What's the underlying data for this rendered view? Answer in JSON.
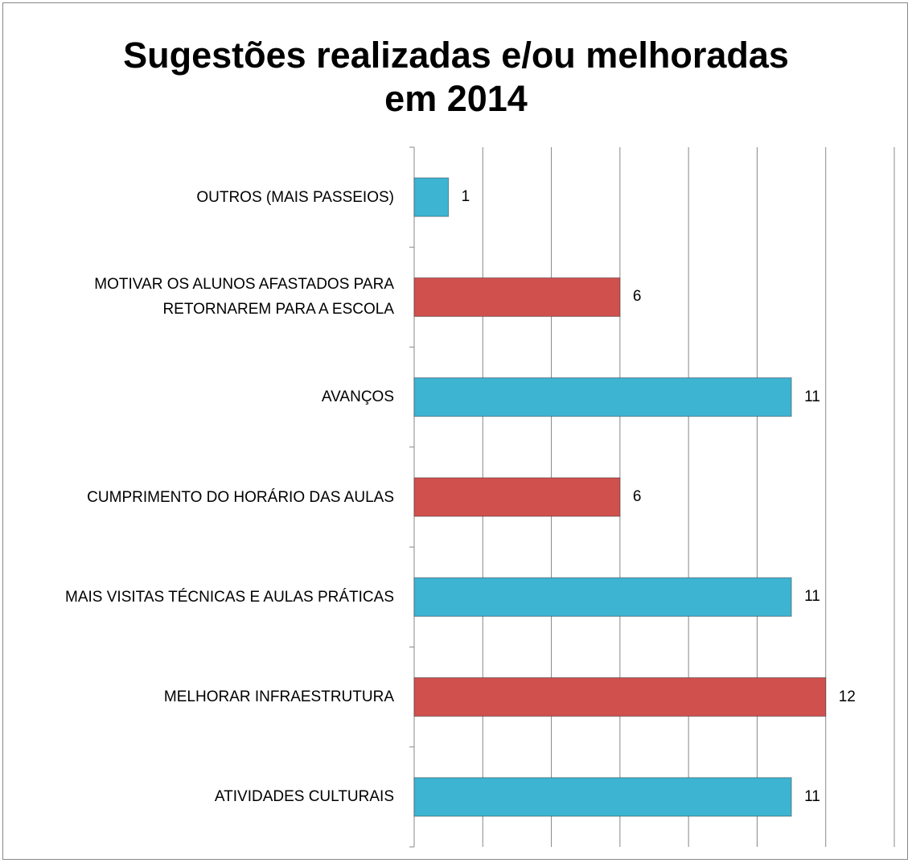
{
  "chart_data": {
    "type": "bar",
    "orientation": "horizontal",
    "title": "Sugestões realizadas e/ou melhoradas em 2014",
    "categories": [
      "OUTROS (MAIS PASSEIOS)",
      "MOTIVAR OS ALUNOS AFASTADOS PARA RETORNAREM PARA A ESCOLA",
      "AVANÇOS",
      "CUMPRIMENTO DO HORÁRIO DAS AULAS",
      "MAIS VISITAS TÉCNICAS E AULAS PRÁTICAS",
      "MELHORAR INFRAESTRUTURA",
      "ATIVIDADES CULTURAIS"
    ],
    "values": [
      1,
      6,
      11,
      6,
      11,
      12,
      11
    ],
    "colors": [
      "#3cb4d2",
      "#d0504e",
      "#3cb4d2",
      "#d0504e",
      "#3cb4d2",
      "#d0504e",
      "#3cb4d2"
    ],
    "xlim": [
      0,
      14
    ],
    "xticks": [
      0,
      2,
      4,
      6,
      8,
      10,
      12,
      14
    ],
    "grid": true
  }
}
